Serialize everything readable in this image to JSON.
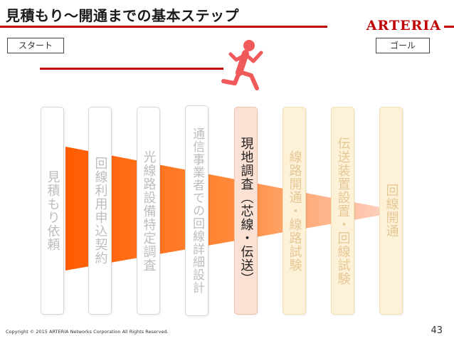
{
  "slide": {
    "title": "見積もり〜開通までの基本ステップ",
    "logo": "ARTERIA",
    "start_label": "スタート",
    "goal_label": "ゴール",
    "steps": [
      {
        "label": "見積もり依頼",
        "style": "past"
      },
      {
        "label": "回線利用申込契約",
        "style": "past"
      },
      {
        "label": "光線路設備特定調査",
        "style": "past"
      },
      {
        "label": "通信事業者での回線詳細設計",
        "style": "past"
      },
      {
        "label": "現地調査（芯線・伝送）",
        "style": "current"
      },
      {
        "label": "線路開通・線路試験",
        "style": "future"
      },
      {
        "label": "伝送装置設置・回線試験",
        "style": "future"
      },
      {
        "label": "回線開通",
        "style": "future"
      }
    ],
    "footer": "Copyright © 2015 ARTERIA Networks Corporation All Rights Reserved.",
    "page_number": "43",
    "colors": {
      "accent": "#c00000",
      "runner": "#f05a5a",
      "funnel_dark": "#ff5a00",
      "funnel_light": "#fcd8d0",
      "step_future": "#fdf1d8",
      "step_current": "#fbe0d4"
    }
  }
}
